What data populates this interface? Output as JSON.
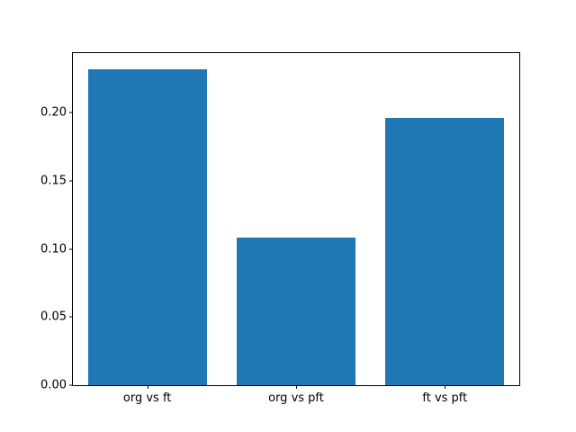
{
  "chart_data": {
    "type": "bar",
    "categories": [
      "org vs ft",
      "org vs pft",
      "ft vs pft"
    ],
    "values": [
      0.232,
      0.108,
      0.196
    ],
    "title": "",
    "xlabel": "",
    "ylabel": "",
    "ylim": [
      0,
      0.2436
    ],
    "yticks": [
      0.0,
      0.05,
      0.1,
      0.15,
      0.2
    ],
    "ytick_labels": [
      "0.00",
      "0.05",
      "0.10",
      "0.15",
      "0.20"
    ],
    "bar_color": "#1f77b4",
    "axis_color": "#000000",
    "background_color": "#ffffff",
    "grid": false,
    "legend": null
  }
}
